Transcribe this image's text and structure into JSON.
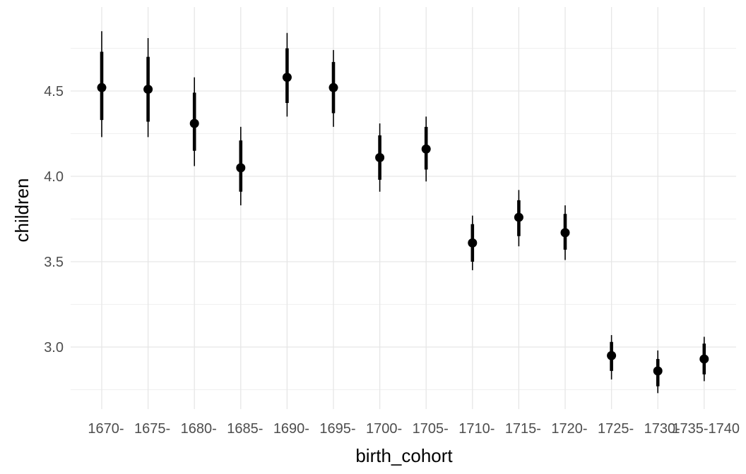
{
  "chart_data": {
    "type": "pointrange",
    "xlabel": "birth_cohort",
    "ylabel": "children",
    "ylim": [
      2.73,
      4.87
    ],
    "yticks": [
      3.0,
      3.5,
      4.0,
      4.5
    ],
    "ytick_labels": [
      "3.0",
      "3.5",
      "4.0",
      "4.5"
    ],
    "grid": true,
    "categories": [
      "1670-1675",
      "1675-1680",
      "1680-1685",
      "1685-1690",
      "1690-1695",
      "1695-1700",
      "1700-1705",
      "1705-1710",
      "1710-1715",
      "1715-1720",
      "1720-1725",
      "1725-1730",
      "1730-1735",
      "1735-1740"
    ],
    "x_tick_labels": [
      "1670-",
      "1675-",
      "1680-",
      "1685-",
      "1690-",
      "1695-",
      "1700-",
      "1705-",
      "1710-",
      "1715-",
      "1720-",
      "1725-",
      "1730-",
      "1735-1740"
    ],
    "point": [
      4.52,
      4.51,
      4.31,
      4.05,
      4.58,
      4.52,
      4.11,
      4.16,
      3.61,
      3.76,
      3.67,
      2.95,
      2.86,
      2.93
    ],
    "inner_low": [
      4.33,
      4.32,
      4.15,
      3.91,
      4.43,
      4.37,
      3.98,
      4.04,
      3.5,
      3.65,
      3.57,
      2.86,
      2.77,
      2.84
    ],
    "inner_high": [
      4.73,
      4.7,
      4.49,
      4.21,
      4.75,
      4.67,
      4.24,
      4.29,
      3.72,
      3.86,
      3.78,
      3.03,
      2.93,
      3.02
    ],
    "outer_low": [
      4.23,
      4.23,
      4.06,
      3.83,
      4.35,
      4.29,
      3.91,
      3.97,
      3.45,
      3.59,
      3.51,
      2.81,
      2.73,
      2.8
    ],
    "outer_high": [
      4.85,
      4.81,
      4.58,
      4.29,
      4.84,
      4.74,
      4.31,
      4.35,
      3.77,
      3.92,
      3.83,
      3.07,
      2.98,
      3.06
    ],
    "color": "#000000"
  }
}
